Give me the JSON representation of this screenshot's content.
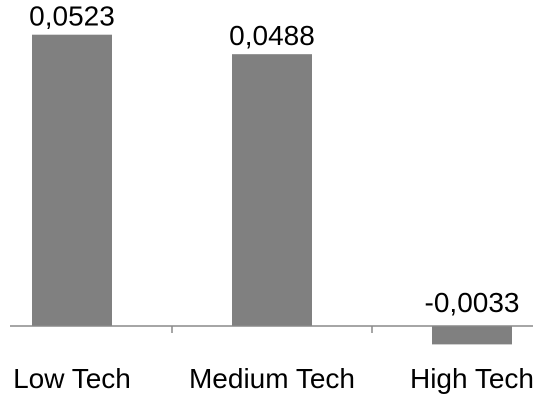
{
  "chart_data": {
    "type": "bar",
    "title": "",
    "xlabel": "",
    "ylabel": "",
    "categories": [
      "Low Tech",
      "Medium Tech",
      "High Tech"
    ],
    "values": [
      0.0523,
      0.0488,
      -0.0033
    ],
    "data_labels": [
      "0,0523",
      "0,0488",
      "-0,0033"
    ],
    "ylim": [
      -0.0033,
      0.0523
    ],
    "grid": false,
    "legend": "none",
    "colors": {
      "bar": "#808080",
      "axis": "#888888",
      "text": "#000000",
      "background": "#ffffff"
    }
  }
}
